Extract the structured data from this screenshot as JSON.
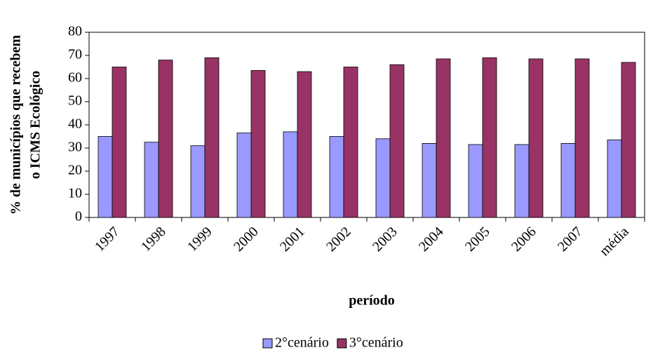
{
  "chart_data": {
    "type": "bar",
    "ylabel": [
      "% de municípios que recebem",
      "o ICMS Ecológico"
    ],
    "xlabel": "período",
    "categories": [
      "1997",
      "1998",
      "1999",
      "2000",
      "2001",
      "2002",
      "2003",
      "2004",
      "2005",
      "2006",
      "2007",
      "média"
    ],
    "series": [
      {
        "name": "2°cenário",
        "color": "#9999ff",
        "values": [
          35,
          32.5,
          31,
          36.5,
          37,
          35,
          34,
          32,
          31.5,
          31.5,
          32,
          33.5
        ]
      },
      {
        "name": "3°cenário",
        "color": "#993366",
        "values": [
          65,
          68,
          69,
          63.5,
          63,
          65,
          66,
          68.5,
          69,
          68.5,
          68.5,
          67
        ]
      }
    ],
    "ylim": [
      0,
      80
    ],
    "yticks": [
      0,
      10,
      20,
      30,
      40,
      50,
      60,
      70,
      80
    ],
    "grid": false
  }
}
